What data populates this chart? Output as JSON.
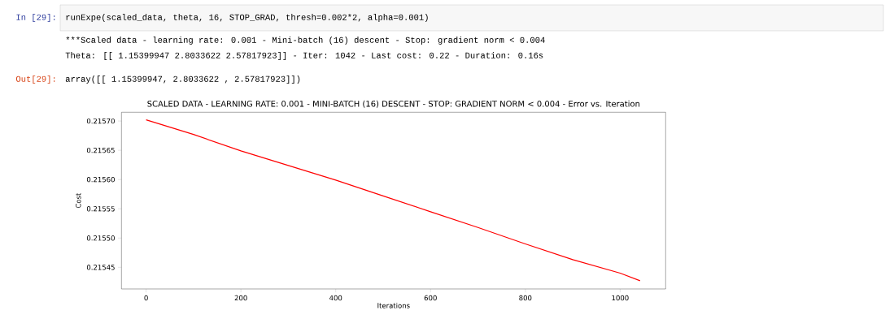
{
  "chart_data": {
    "type": "line",
    "title": "SCALED DATA - LEARNING RATE: 0.001 - MINI-BATCH (16) DESCENT - STOP: GRADIENT NORM < 0.004 - Error vs. Iteration",
    "xlabel": "Iterations",
    "ylabel": "Cost",
    "annotations": [
      "In [29]:",
      "runExpe(scaled_data, theta, 16, STOP_GRAD, thresh=0.002*2, alpha=0.001)",
      "***Scaled data - learning rate: 0.001 - Mini-batch (16) descent - Stop: gradient norm < 0.004",
      "Theta: [[ 1.15399947  2.8033622   2.57817923]] - Iter: 1042 - Last cost: 0.22 - Duration: 0.16s",
      "Out[29]:",
      "array([[ 1.15399947,  2.8033622 ,  2.57817923]])"
    ],
    "x": [
      0,
      100,
      200,
      300,
      400,
      500,
      600,
      700,
      800,
      900,
      1000,
      1042
    ],
    "series": [
      {
        "color": "#ff0000",
        "values": [
          0.215702,
          0.215677,
          0.215649,
          0.215624,
          0.215599,
          0.215572,
          0.215545,
          0.215518,
          0.21549,
          0.215463,
          0.21544,
          0.215427
        ]
      }
    ],
    "xlim": [
      -52,
      1096
    ],
    "ylim": [
      0.215413,
      0.215715
    ],
    "xticks": [
      0,
      200,
      400,
      600,
      800,
      1000
    ],
    "yticks": [
      {
        "value": 0.21545,
        "label": "0.21545"
      },
      {
        "value": 0.2155,
        "label": "0.21550"
      },
      {
        "value": 0.21555,
        "label": "0.21555"
      },
      {
        "value": 0.2156,
        "label": "0.21560"
      },
      {
        "value": 0.21565,
        "label": "0.21565"
      },
      {
        "value": 0.2157,
        "label": "0.21570"
      }
    ],
    "marker": "none",
    "line_style": "solid"
  }
}
